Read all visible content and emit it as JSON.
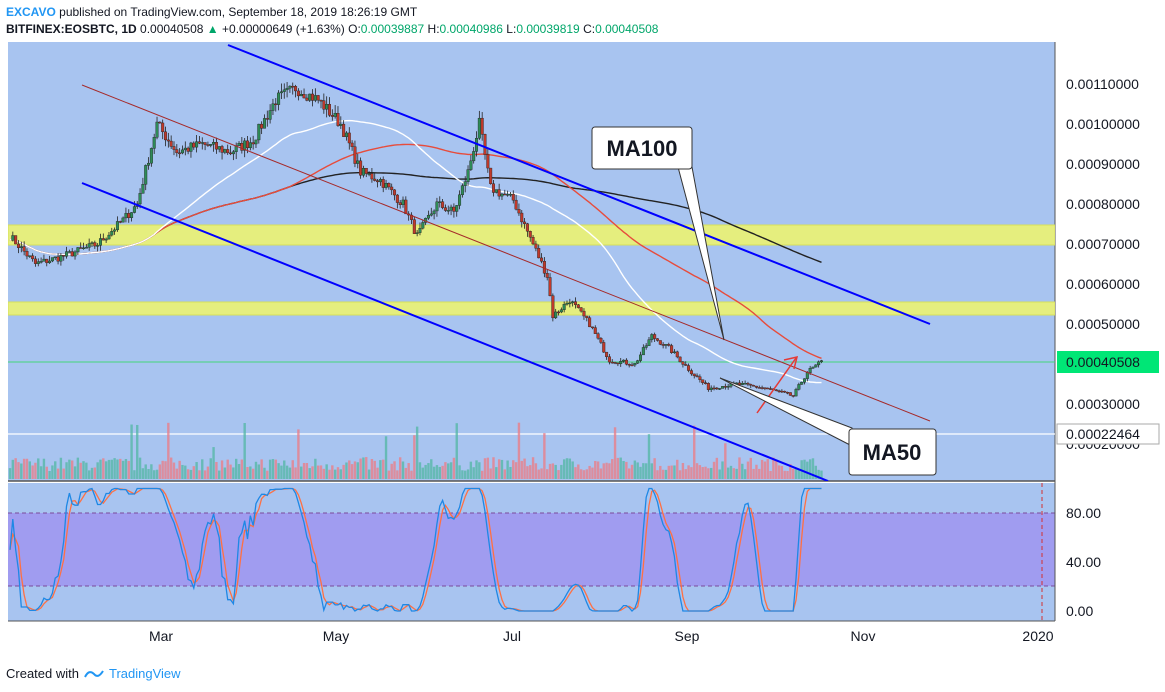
{
  "header": {
    "author": "EXCAVO",
    "published": "published on TradingView.com, September 18, 2019 18:26:19 GMT",
    "symbol": "BITFINEX:EOSBTC, 1D",
    "price": "0.00040508",
    "change_arrow": "▲",
    "change": "+0.00000649 (+1.63%)",
    "o_label": "O:",
    "o": "0.00039887",
    "h_label": "H:",
    "h": "0.00040986",
    "l_label": "L:",
    "l": "0.00039819",
    "c_label": "C:",
    "c": "0.00040508"
  },
  "footer": {
    "created_with": "Created with",
    "brand": "TradingView"
  },
  "colors": {
    "background": "#a8c4f0",
    "channel": "#0000ff",
    "midline": "#a52a2a",
    "zone": "#e5ee7e",
    "ma50": "#ffffff",
    "ma100": "#e74c3c",
    "ma200": "#222222",
    "bull": "#2e8b57",
    "bear": "#c0392b",
    "price_badge": "#00e676",
    "stoch_band": "#9e8ff0",
    "stoch_k": "#1e88e5",
    "stoch_d": "#ff7043"
  },
  "chart_data": [
    {
      "type": "candlestick",
      "title": "",
      "y_axis_side": "right",
      "ylim": [
        0.00017,
        0.00117
      ],
      "y_ticks": [
        "0.00110000",
        "0.00100000",
        "0.00090000",
        "0.00080000",
        "0.00070000",
        "0.00060000",
        "0.00050000",
        "0.00030000",
        "0.00020000"
      ],
      "x_ticks": [
        "Mar",
        "May",
        "Jul",
        "Sep",
        "Nov",
        "2020"
      ],
      "current_price": "0.00040508",
      "marked_level": "0.00022464",
      "support_resistance_zones": [
        [
          0.00069,
          0.00075
        ],
        [
          0.000525,
          0.000555
        ]
      ],
      "price_series": [
        [
          "2019-01-01",
          0.00072
        ],
        [
          "2019-01-10",
          0.00065
        ],
        [
          "2019-01-20",
          0.00067
        ],
        [
          "2019-02-01",
          0.0007
        ],
        [
          "2019-02-10",
          0.00076
        ],
        [
          "2019-02-15",
          0.0008
        ],
        [
          "2019-02-22",
          0.001
        ],
        [
          "2019-03-01",
          0.00093
        ],
        [
          "2019-03-10",
          0.00095
        ],
        [
          "2019-03-20",
          0.00093
        ],
        [
          "2019-03-28",
          0.00096
        ],
        [
          "2019-04-05",
          0.00106
        ],
        [
          "2019-04-12",
          0.00109
        ],
        [
          "2019-04-20",
          0.00106
        ],
        [
          "2019-04-28",
          0.001
        ],
        [
          "2019-05-05",
          0.00088
        ],
        [
          "2019-05-12",
          0.00086
        ],
        [
          "2019-05-20",
          0.0008
        ],
        [
          "2019-05-25",
          0.00072
        ],
        [
          "2019-06-01",
          0.0008
        ],
        [
          "2019-06-07",
          0.00078
        ],
        [
          "2019-06-12",
          0.00088
        ],
        [
          "2019-06-16",
          0.001
        ],
        [
          "2019-06-20",
          0.00084
        ],
        [
          "2019-06-28",
          0.00081
        ],
        [
          "2019-07-05",
          0.0007
        ],
        [
          "2019-07-10",
          0.00062
        ],
        [
          "2019-07-12",
          0.00052
        ],
        [
          "2019-07-18",
          0.00056
        ],
        [
          "2019-07-25",
          0.0005
        ],
        [
          "2019-08-01",
          0.00041
        ],
        [
          "2019-08-10",
          0.0004
        ],
        [
          "2019-08-16",
          0.00047
        ],
        [
          "2019-08-22",
          0.00044
        ],
        [
          "2019-08-30",
          0.00038
        ],
        [
          "2019-09-05",
          0.00034
        ],
        [
          "2019-09-15",
          0.00035
        ],
        [
          "2019-09-25",
          0.00034
        ],
        [
          "2019-10-05",
          0.00032
        ],
        [
          "2019-10-10",
          0.00038
        ],
        [
          "2019-10-15",
          0.000405
        ]
      ],
      "lines": [
        {
          "name": "MA50",
          "label": "MA50"
        },
        {
          "name": "MA100",
          "label": "MA100"
        }
      ]
    },
    {
      "type": "line",
      "title": "",
      "y_axis_side": "right",
      "ylim": [
        -5,
        105
      ],
      "y_ticks": [
        "80.00",
        "40.00",
        "0.00"
      ],
      "band": [
        20,
        80
      ]
    }
  ]
}
